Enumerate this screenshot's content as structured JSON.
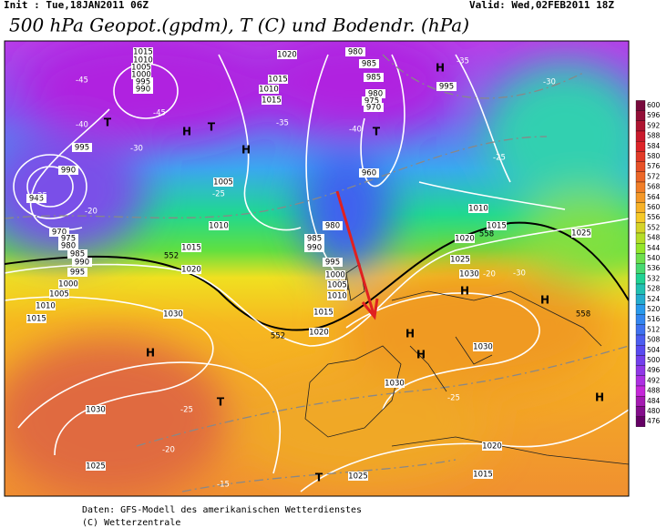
{
  "header": {
    "init": "Init : Tue,18JAN2011 06Z",
    "valid": "Valid: Wed,02FEB2011 18Z",
    "title": "500 hPa Geopot.(gpdm), T (C) und Bodendr. (hPa)"
  },
  "legend": {
    "levels": [
      600,
      596,
      592,
      588,
      584,
      580,
      576,
      572,
      568,
      564,
      560,
      556,
      552,
      548,
      544,
      540,
      536,
      532,
      528,
      524,
      520,
      516,
      512,
      508,
      504,
      500,
      496,
      492,
      488,
      484,
      480,
      476
    ]
  },
  "map": {
    "isobars": [
      "1015",
      "1010",
      "1005",
      "1000",
      "995",
      "990",
      "1020",
      "1015",
      "1010",
      "1015",
      "980",
      "985",
      "985",
      "980",
      "975",
      "970",
      "960",
      "995",
      "995",
      "990",
      "945",
      "970",
      "975",
      "980",
      "985",
      "990",
      "995",
      "1000",
      "1005",
      "1010",
      "1015",
      "1005",
      "1010",
      "1015",
      "1020",
      "1030",
      "980",
      "985",
      "990",
      "995",
      "1000",
      "1005",
      "1010",
      "1015",
      "1020",
      "1010",
      "1015",
      "1020",
      "1025",
      "1030",
      "1025",
      "1030",
      "1030",
      "1030",
      "1025",
      "1025",
      "1020",
      "1015"
    ],
    "centers": [
      "H",
      "T",
      "H",
      "T",
      "H",
      "T",
      "H",
      "H",
      "H",
      "H",
      "H",
      "H",
      "T",
      "T"
    ],
    "temperatures": [
      "-45",
      "-40",
      "-35",
      "-30",
      "-25",
      "-20",
      "-25",
      "-30",
      "-25",
      "-20",
      "-25",
      "-20",
      "-25",
      "-15",
      "-30",
      "-35",
      "-40",
      "-45"
    ],
    "geopotential": [
      "552",
      "552",
      "558",
      "558"
    ]
  },
  "footer": {
    "source": "Daten: GFS-Modell des amerikanischen Wetterdienstes",
    "copyright": "(C) Wetterzentrale"
  }
}
